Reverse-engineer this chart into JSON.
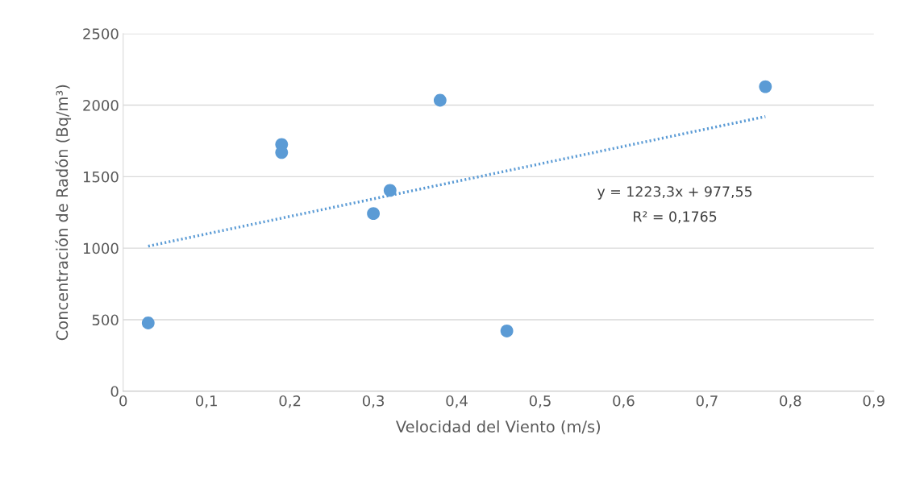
{
  "chart_data": {
    "type": "scatter",
    "xlabel": "Velocidad del Viento (m/s)",
    "ylabel": "Concentración de Radón (Bq/m³)",
    "x": [
      0.03,
      0.19,
      0.19,
      0.3,
      0.32,
      0.38,
      0.46,
      0.77
    ],
    "series": [
      {
        "color": "#5b9bd5",
        "marker": "circle",
        "values": [
          477,
          1725,
          1669,
          1242,
          1404,
          2034,
          421,
          2129
        ]
      },
      {
        "type": "line",
        "color": "#5b9bd5",
        "line_style": "dotted",
        "marker": "none",
        "x": [
          0.03,
          0.77
        ],
        "values": [
          1014,
          1920
        ]
      }
    ],
    "annotations": [
      "y = 1223,3x + 977,55",
      "R² = 0,1765"
    ],
    "xlim": [
      0,
      0.9
    ],
    "xticks": [
      0,
      {
        "value": 0.1,
        "label": "0,1"
      },
      {
        "value": 0.2,
        "label": "0,2"
      },
      {
        "value": 0.3,
        "label": "0,3"
      },
      {
        "value": 0.4,
        "label": "0,4"
      },
      {
        "value": 0.5,
        "label": "0,5"
      },
      {
        "value": 0.6,
        "label": "0,6"
      },
      {
        "value": 0.7,
        "label": "0,7"
      },
      {
        "value": 0.8,
        "label": "0,8"
      },
      {
        "value": 0.9,
        "label": "0,9"
      }
    ],
    "ylim": [
      0,
      2500
    ],
    "yticks": [
      0,
      500,
      1000,
      1500,
      2000,
      2500
    ],
    "grid": "y",
    "legend": false
  }
}
